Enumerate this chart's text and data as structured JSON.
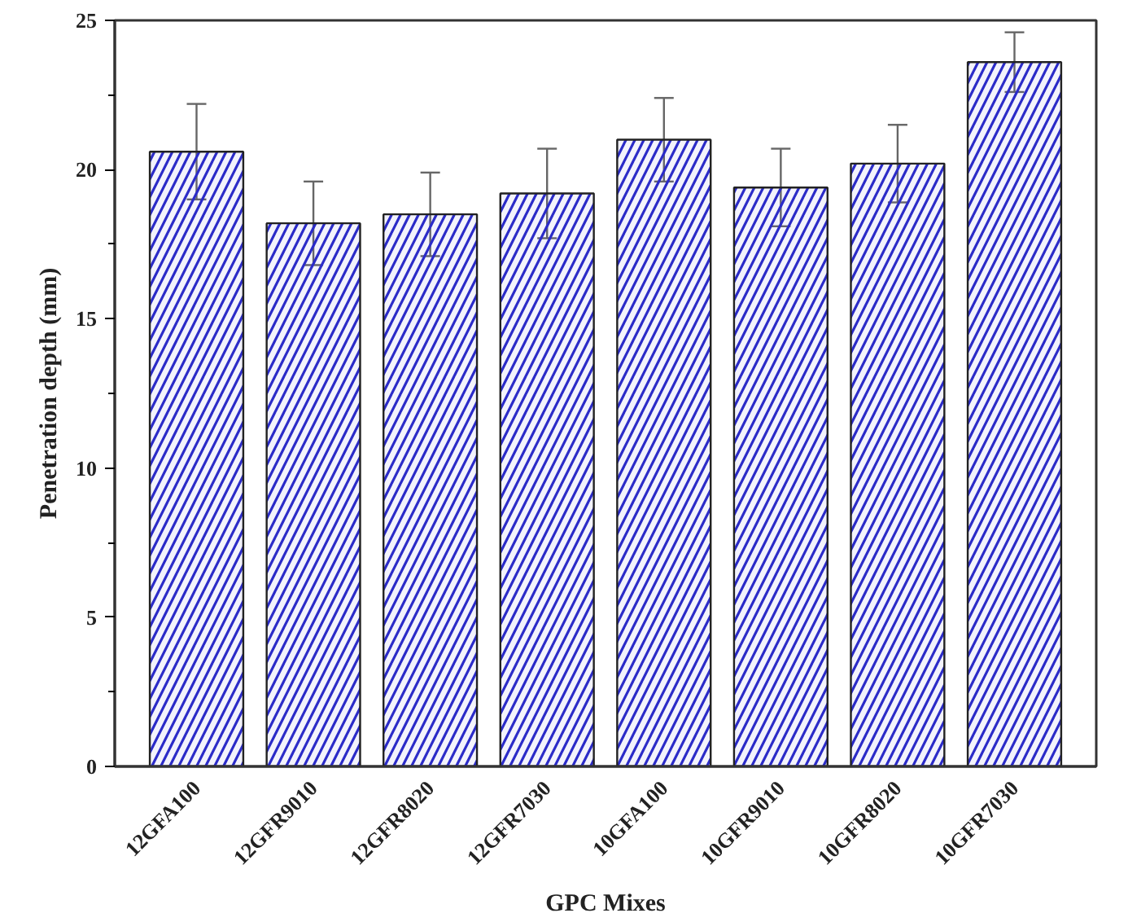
{
  "chart_data": {
    "type": "bar",
    "xlabel": "GPC Mixes",
    "ylabel": "Penetration depth (mm)",
    "categories": [
      "12GFA100",
      "12GFR9010",
      "12GFR8020",
      "12GFR7030",
      "10GFA100",
      "10GFR9010",
      "10GFR8020",
      "10GFR7030"
    ],
    "values": [
      20.6,
      18.2,
      18.5,
      19.2,
      21.0,
      19.4,
      20.2,
      23.6
    ],
    "errors": [
      1.6,
      1.4,
      1.4,
      1.5,
      1.4,
      1.3,
      1.3,
      1.0
    ],
    "color": "#2b2bc8",
    "ylim": [
      0,
      25
    ],
    "yticks": [
      0,
      5,
      10,
      15,
      20,
      25
    ]
  }
}
